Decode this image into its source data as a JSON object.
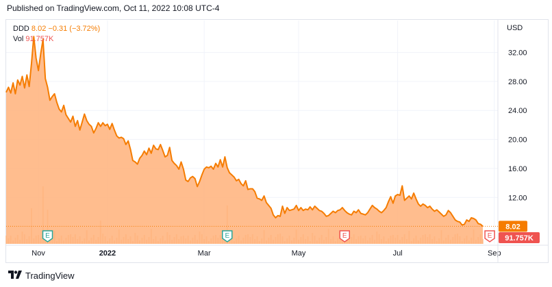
{
  "header": {
    "published": "Published on TradingView.com, Oct 11, 2022 10:08 UTC-4"
  },
  "legend": {
    "symbol": "DDD",
    "last": "8.02",
    "change": "−0.31 (−3.72%)",
    "vol_label": "Vol",
    "vol_value": "91.757K"
  },
  "footer": {
    "brand": "TradingView"
  },
  "colors": {
    "line": "#f57c00",
    "area": "#ffb27a",
    "volume": "#f9c49e",
    "last_tag": "#f57c00",
    "vol_tag": "#ef5350",
    "earnings": "#26a69a",
    "earnings_neg": "#ef5350"
  },
  "chart_data": {
    "type": "area",
    "currency": "USD",
    "y_ticks": [
      "32.00",
      "28.00",
      "24.00",
      "20.00",
      "16.00",
      "12.00"
    ],
    "y_tick_values": [
      32,
      28,
      24,
      20,
      16,
      12
    ],
    "ylim": [
      5.6,
      36.4
    ],
    "x_ticks": [
      "Nov",
      "2022",
      "Mar",
      "May",
      "Jul",
      "Sep"
    ],
    "x_tick_index": [
      14,
      44,
      86,
      127,
      170,
      212
    ],
    "last_price": 8.02,
    "last_price_label": "8.02",
    "volume_label": "91.757K",
    "earnings_markers": [
      {
        "label": "E",
        "index": 18,
        "kind": "positive"
      },
      {
        "label": "E",
        "index": 96,
        "kind": "positive"
      },
      {
        "label": "E",
        "index": 147,
        "kind": "negative"
      },
      {
        "label": "E",
        "index": 210,
        "kind": "negative"
      }
    ],
    "close": [
      26.5,
      27.2,
      26.4,
      27.8,
      26.3,
      28.2,
      27.5,
      28.7,
      27.1,
      28.9,
      27.3,
      30.5,
      34.2,
      31.2,
      29.5,
      31.8,
      33.8,
      28.4,
      27.2,
      25.4,
      25.9,
      26.3,
      25.1,
      24.2,
      23.8,
      24.7,
      23.4,
      22.9,
      22.4,
      23.2,
      21.8,
      22.6,
      21.3,
      22.4,
      23.5,
      22.6,
      22.1,
      21.8,
      20.9,
      21.5,
      22.3,
      21.8,
      22.3,
      21.9,
      22.1,
      21.4,
      22.2,
      21.3,
      20.5,
      20.2,
      20.3,
      20.1,
      19.3,
      19.8,
      18.6,
      17.1,
      16.9,
      16.6,
      17.4,
      17.8,
      18.4,
      17.9,
      18.8,
      18.1,
      19.2,
      18.7,
      18.6,
      19.3,
      18.5,
      17.6,
      17.8,
      18.9,
      17.1,
      16.7,
      16.4,
      15.9,
      16.9,
      15.9,
      14.4,
      14.2,
      14.7,
      14.9,
      14.6,
      13.5,
      14.2,
      15.1,
      15.9,
      16.2,
      16.1,
      16.3,
      15.9,
      16.7,
      16.2,
      17.2,
      16.2,
      17.6,
      16.1,
      15.4,
      15.1,
      14.8,
      14.3,
      14.5,
      13.9,
      13.6,
      14.3,
      13.1,
      13.2,
      13.2,
      12.8,
      11.9,
      11.8,
      11.6,
      12.2,
      11.3,
      10.9,
      10.5,
      9.6,
      9.2,
      9.5,
      9.4,
      10.8,
      9.8,
      10.6,
      10.2,
      10.3,
      10.4,
      10.9,
      10.2,
      10.6,
      10.2,
      10.4,
      10.3,
      10.7,
      10.3,
      10.8,
      10.5,
      10.2,
      10.1,
      9.8,
      9.4,
      9.5,
      9.8,
      10.1,
      9.9,
      10.2,
      10.3,
      10.6,
      10.2,
      9.9,
      9.7,
      9.6,
      10.1,
      9.9,
      10.3,
      9.8,
      9.7,
      9.6,
      9.9,
      10.4,
      10.9,
      10.6,
      10.4,
      10.1,
      9.9,
      10.2,
      10.6,
      11.4,
      12.1,
      11.2,
      12.2,
      12.4,
      12.3,
      13.6,
      11.6,
      11.9,
      12.2,
      11.8,
      12.6,
      11.8,
      11.1,
      10.8,
      11.1,
      10.9,
      10.6,
      10.8,
      10.4,
      10.1,
      10.3,
      10.0,
      9.7,
      9.4,
      9.6,
      10.2,
      9.9,
      9.4,
      8.9,
      8.7,
      8.6,
      8.2,
      8.3,
      8.9,
      8.7,
      9.2,
      9.1,
      8.9,
      8.4,
      8.3,
      8.02
    ]
  }
}
